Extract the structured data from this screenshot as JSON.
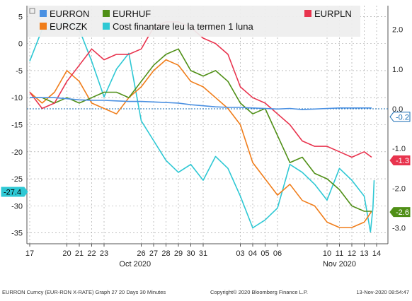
{
  "chart_data": {
    "type": "line",
    "title": "",
    "left_axis": {
      "ylim": [
        -37,
        7
      ],
      "ticks": [
        5,
        0,
        -5,
        -10,
        -15,
        -20,
        -25,
        -30,
        -35
      ]
    },
    "right_axis": {
      "ylim": [
        -3.4,
        2.6
      ],
      "ticks": [
        "2.0",
        "1.0",
        "0.0",
        "-1.0",
        "-2.0",
        "-3.0"
      ],
      "values": [
        2,
        1,
        0,
        -1,
        -2,
        -3
      ]
    },
    "x_ticks": [
      "17",
      "20",
      "21",
      "22",
      "23",
      "26",
      "27",
      "28",
      "29",
      "30",
      "31",
      "03",
      "04",
      "05",
      "06",
      "10",
      "11",
      "12",
      "13",
      "14"
    ],
    "x_tick_positions": [
      0,
      3,
      4,
      5,
      6,
      9,
      10,
      11,
      12,
      13,
      14,
      17,
      18,
      19,
      20,
      24,
      25,
      26,
      27,
      28
    ],
    "month_labels": [
      {
        "label": "Oct 2020",
        "pos": 8.5
      },
      {
        "label": "Nov 2020",
        "pos": 25
      }
    ],
    "legend": {
      "placement": "top",
      "items": [
        {
          "name": "EURRON",
          "color": "#4a90e2"
        },
        {
          "name": "EURHUF",
          "color": "#4f8f16"
        },
        {
          "name": "EURPLN",
          "color": "#e8344e"
        },
        {
          "name": "EURCZK",
          "color": "#f07d1a"
        },
        {
          "name": "Cost finantare leu la termen 1 luna",
          "color": "#2ec8d4"
        }
      ]
    },
    "series": [
      {
        "name": "EURRON",
        "axis": "left",
        "color": "#4a90e2",
        "x": [
          0,
          1,
          2,
          3,
          4,
          5,
          6,
          7,
          8,
          9,
          10,
          11,
          12,
          13,
          14,
          15,
          16,
          17,
          18,
          19,
          20,
          21,
          22,
          23,
          24,
          25,
          26,
          27,
          27.6
        ],
        "y": [
          -10,
          -10,
          -10,
          -10.2,
          -10.4,
          -10.5,
          -10.5,
          -10.6,
          -10.7,
          -10.7,
          -10.8,
          -10.9,
          -11,
          -11.3,
          -11.5,
          -11.7,
          -11.8,
          -11.8,
          -11.9,
          -12,
          -12.1,
          -12,
          -12.2,
          -12.1,
          -12,
          -11.9,
          -11.9,
          -11.9,
          -11.9
        ]
      },
      {
        "name": "EURHUF",
        "axis": "left",
        "color": "#4f8f16",
        "x": [
          0,
          1,
          2,
          3,
          4,
          5,
          6,
          7,
          8,
          9,
          10,
          11,
          12,
          13,
          14,
          15,
          16,
          17,
          18,
          19,
          20,
          21,
          22,
          23,
          24,
          25,
          26,
          27,
          27.6
        ],
        "y": [
          -10,
          -10,
          -11,
          -10,
          -11,
          -10,
          -9,
          -9,
          -10,
          -7,
          -4,
          -2,
          -1,
          -5,
          -6,
          -5,
          -7,
          -11,
          -13,
          -12,
          -17,
          -22,
          -21,
          -24,
          -25,
          -27,
          -30,
          -31,
          -31
        ]
      },
      {
        "name": "EURPLN",
        "axis": "left",
        "color": "#e8344e",
        "x": [
          0,
          1,
          2,
          3,
          4,
          5,
          6,
          7,
          8,
          9,
          10,
          11,
          12,
          13,
          14,
          15,
          16,
          17,
          18,
          19,
          20,
          21,
          22,
          23,
          24,
          25,
          26,
          27,
          27.6
        ],
        "y": [
          -9,
          -12,
          -11,
          -7,
          -4,
          -1,
          -3,
          -2,
          -2,
          -1,
          3,
          4,
          4,
          3,
          1,
          0,
          -2,
          -8,
          -10,
          -11,
          -13,
          -15,
          -18,
          -19,
          -19,
          -20,
          -21,
          -20,
          -21
        ]
      },
      {
        "name": "EURCZK",
        "axis": "left",
        "color": "#f07d1a",
        "x": [
          0,
          1,
          2,
          3,
          4,
          5,
          6,
          7,
          8,
          9,
          10,
          11,
          12,
          13,
          14,
          15,
          16,
          17,
          18,
          19,
          20,
          21,
          22,
          23,
          24,
          25,
          26,
          27,
          27.6
        ],
        "y": [
          -9,
          -11,
          -9,
          -5,
          -7,
          -11,
          -12,
          -13,
          -10,
          -8,
          -5,
          -3,
          -4,
          -7,
          -8,
          -10,
          -12,
          -15,
          -22,
          -25,
          -28,
          -26,
          -29,
          -30,
          -33,
          -34,
          -34,
          -33,
          -31
        ]
      },
      {
        "name": "Cost finantare leu la termen 1 luna",
        "axis": "right",
        "color": "#2ec8d4",
        "x": [
          0,
          1,
          2,
          3,
          4,
          5,
          6,
          7,
          8,
          9,
          10,
          11,
          12,
          13,
          14,
          15,
          16,
          17,
          18,
          19,
          20,
          21,
          22,
          23,
          24,
          25,
          26,
          27,
          27.5,
          27.7,
          27.8
        ],
        "y": [
          1.2,
          2.0,
          2.0,
          2.2,
          2.0,
          1.2,
          0.3,
          1.0,
          1.4,
          -0.3,
          -0.8,
          -1.3,
          -1.6,
          -1.4,
          -1.8,
          -1.2,
          -1.5,
          -2.2,
          -3.0,
          -2.8,
          -2.5,
          -1.4,
          -1.6,
          -1.9,
          -2.3,
          -1.5,
          -1.8,
          -2.2,
          -3.1,
          -2.5,
          -1.8
        ]
      }
    ],
    "end_labels": [
      {
        "text": "-0.2",
        "value": -0.2,
        "axis": "right",
        "bg": "#ffffff",
        "fg": "#1a6fb5",
        "border": "#1a6fb5"
      },
      {
        "text": "-1.3",
        "value": -1.3,
        "axis": "right",
        "bg": "#e8344e",
        "fg": "#ffffff",
        "border": "#e8344e"
      },
      {
        "text": "-2.6",
        "value": -2.6,
        "axis": "right",
        "bg": "#4f8f16",
        "fg": "#ffffff",
        "border": "#4f8f16"
      },
      {
        "text": "-27.4",
        "value": -27.4,
        "axis": "left",
        "bg": "#2ec8d4",
        "fg": "#000000",
        "border": "#2ec8d4"
      }
    ]
  },
  "footer": {
    "left": "EURRON Curncy (EUR-RON X-RATE) Graph 27 20 Days 30 Minutes",
    "center": "Copyright© 2020 Bloomberg Finance L.P.",
    "right": "13-Nov-2020 08:54:47"
  }
}
